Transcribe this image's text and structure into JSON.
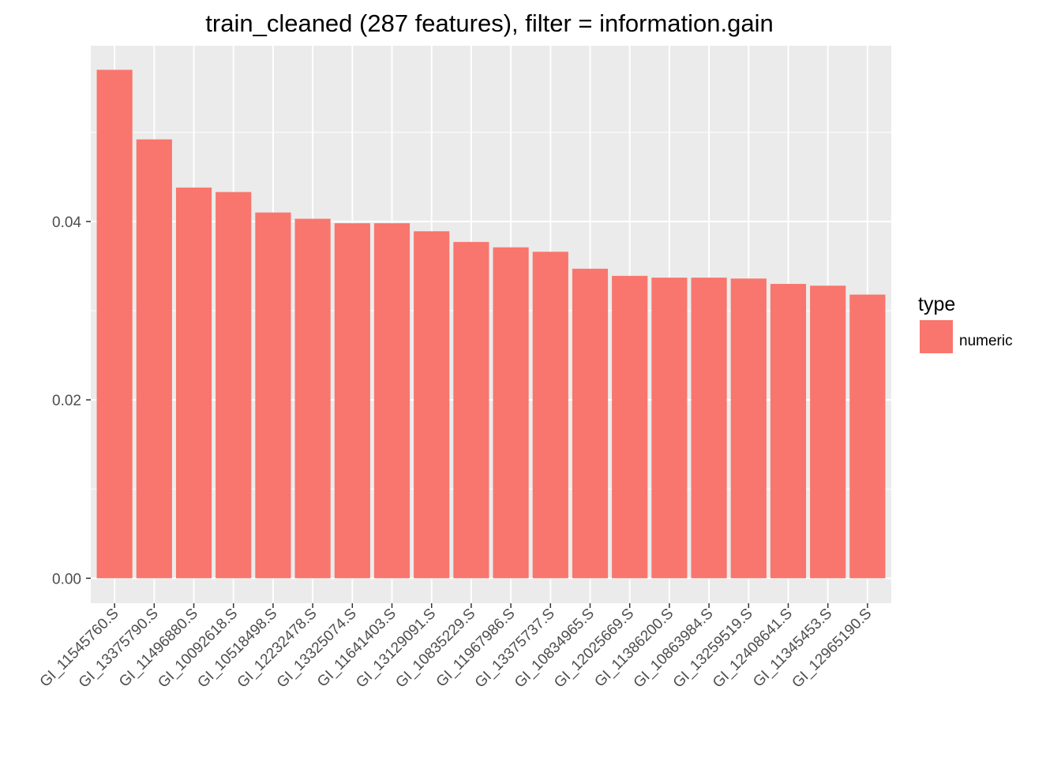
{
  "chart_data": {
    "type": "bar",
    "title": "train_cleaned (287 features), filter = information.gain",
    "xlabel": "",
    "ylabel": "",
    "ylim": [
      -0.0028,
      0.0597
    ],
    "yticks": [
      0.0,
      0.02,
      0.04
    ],
    "ytick_labels": [
      "0.00",
      "0.02",
      "0.04"
    ],
    "grid": true,
    "legend": {
      "title": "type",
      "position": "right"
    },
    "categories": [
      "GI_11545760.S",
      "GI_13375790.S",
      "GI_11496880.S",
      "GI_10092618.S",
      "GI_10518498.S",
      "GI_12232478.S",
      "GI_13325074.S",
      "GI_11641403.S",
      "GI_13129091.S",
      "GI_10835229.S",
      "GI_11967986.S",
      "GI_13375737.S",
      "GI_10834965.S",
      "GI_12025669.S",
      "GI_11386200.S",
      "GI_10863984.S",
      "GI_13259519.S",
      "GI_12408641.S",
      "GI_11345453.S",
      "GI_12965190.S"
    ],
    "series": [
      {
        "name": "numeric",
        "color": "#F8766D",
        "values": [
          0.057,
          0.0492,
          0.0438,
          0.0433,
          0.041,
          0.0403,
          0.0398,
          0.0398,
          0.0389,
          0.0377,
          0.0371,
          0.0366,
          0.0347,
          0.0339,
          0.0337,
          0.0337,
          0.0336,
          0.033,
          0.0328,
          0.0318
        ]
      }
    ]
  }
}
